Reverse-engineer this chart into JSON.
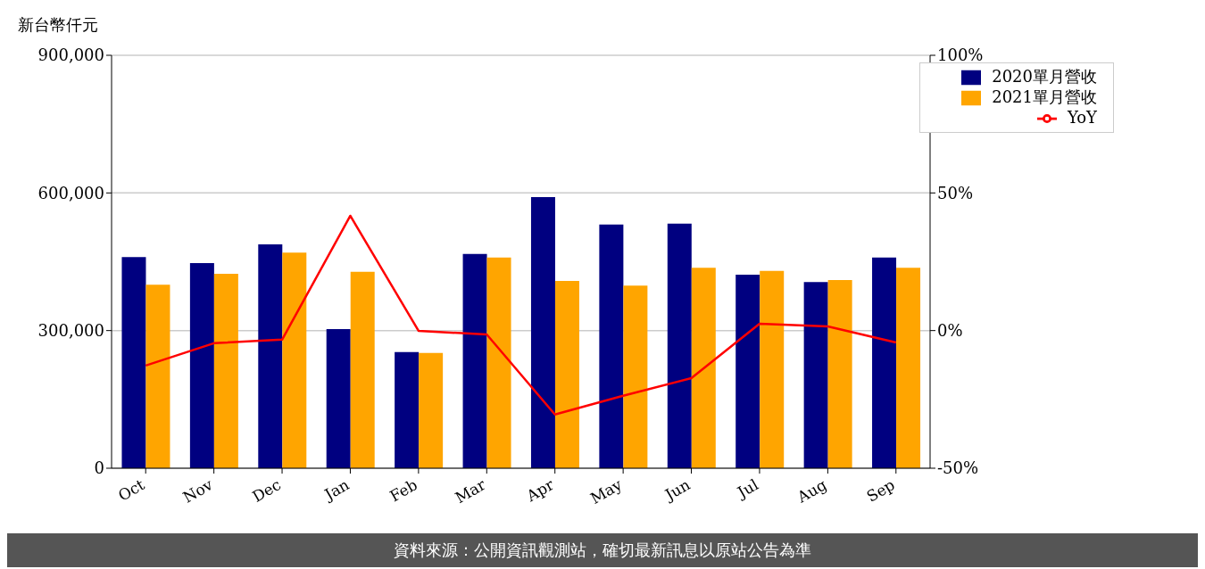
{
  "chart_data": {
    "type": "bar",
    "ylabel": "新台幣仟元",
    "categories": [
      "Oct",
      "Nov",
      "Dec",
      "Jan",
      "Feb",
      "Mar",
      "Apr",
      "May",
      "Jun",
      "Jul",
      "Aug",
      "Sep"
    ],
    "series": [
      {
        "name": "2020單月營收",
        "color": "#000080",
        "values": [
          460000,
          447000,
          488000,
          303000,
          253000,
          467000,
          591000,
          531000,
          533000,
          422000,
          406000,
          459000
        ]
      },
      {
        "name": "2021單月營收",
        "color": "#ffa500",
        "values": [
          400000,
          424000,
          470000,
          428000,
          251000,
          459000,
          408000,
          398000,
          437000,
          430000,
          410000,
          437000
        ]
      },
      {
        "name": "YoY",
        "type": "line",
        "axis": "y2",
        "color": "#ff0000",
        "values": [
          -12.7,
          -4.6,
          -3.3,
          41.7,
          -0.1,
          -1.4,
          -30.5,
          -23.7,
          -17.3,
          2.5,
          1.5,
          -4.3
        ]
      }
    ],
    "ylim": [
      0,
      900000
    ],
    "yticks": [
      {
        "value": 0,
        "label": "0"
      },
      {
        "value": 300000,
        "label": "300,000"
      },
      {
        "value": 600000,
        "label": "600,000"
      },
      {
        "value": 900000,
        "label": "900,000"
      }
    ],
    "y2lim": [
      -50,
      100
    ],
    "y2ticks": [
      {
        "value": -50,
        "label": "-50%"
      },
      {
        "value": 0,
        "label": "0%"
      },
      {
        "value": 50,
        "label": "50%"
      },
      {
        "value": 100,
        "label": "100%"
      }
    ],
    "grid": "y",
    "legend": "top right",
    "marker": "none",
    "line_style": "solid",
    "annotations": [
      "資料來源：公開資訊觀測站，確切最新訊息以原站公告為準"
    ]
  }
}
